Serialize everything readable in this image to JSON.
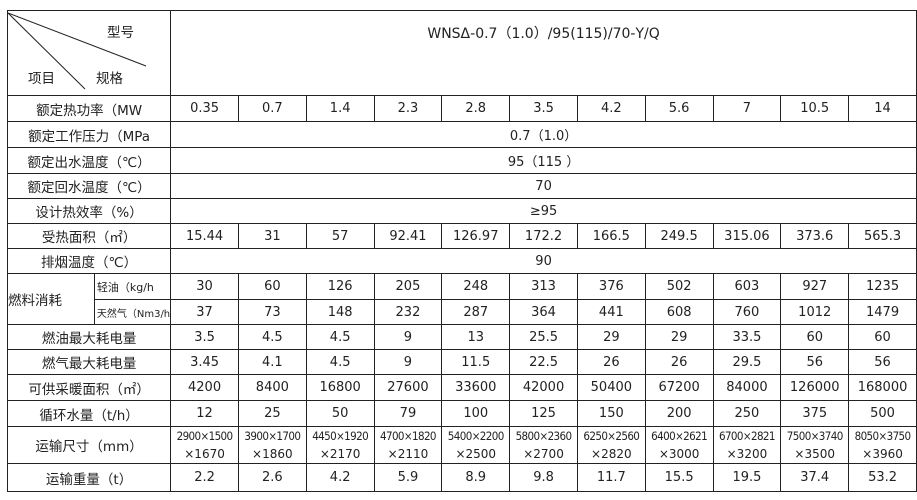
{
  "header": {
    "model_label": "型号",
    "item_label": "项目",
    "spec_label": "规格",
    "model": "WNSΔ-0.7（1.0）/95(115)/70-Y/Q"
  },
  "rows": [
    {
      "label": "额定热功率（MW",
      "values": [
        "0.35",
        "0.7",
        "1.4",
        "2.3",
        "2.8",
        "3.5",
        "4.2",
        "5.6",
        "7",
        "10.5",
        "14"
      ]
    },
    {
      "label": "额定工作压力（MPa",
      "merged": "0.7（1.0）"
    },
    {
      "label": "额定出水温度（℃）",
      "merged": "95（115 ）"
    },
    {
      "label": "额定回水温度（℃）",
      "merged": "70"
    },
    {
      "label": "设计热效率（%）",
      "merged": "≥95"
    },
    {
      "label": "受热面积（㎡）",
      "values": [
        "15.44",
        "31",
        "57",
        "92.41",
        "126.97",
        "172.2",
        "166.5",
        "249.5",
        "315.06",
        "373.6",
        "565.3"
      ]
    },
    {
      "label": "排烟温度（℃）",
      "merged": "90"
    }
  ],
  "fuel": {
    "label": "燃料消耗",
    "oil": {
      "label": "轻油（kg/h",
      "values": [
        "30",
        "60",
        "126",
        "205",
        "248",
        "313",
        "376",
        "502",
        "603",
        "927",
        "1235"
      ]
    },
    "gas": {
      "label": "天然气（Nm3/h",
      "values": [
        "37",
        "73",
        "148",
        "232",
        "287",
        "364",
        "441",
        "608",
        "760",
        "1012",
        "1479"
      ]
    }
  },
  "rows2": [
    {
      "label": "燃油最大耗电量",
      "values": [
        "3.5",
        "4.5",
        "4.5",
        "9",
        "13",
        "25.5",
        "29",
        "29",
        "33.5",
        "60",
        "60"
      ]
    },
    {
      "label": "燃气最大耗电量",
      "values": [
        "3.45",
        "4.1",
        "4.5",
        "9",
        "11.5",
        "22.5",
        "26",
        "26",
        "29.5",
        "56",
        "56"
      ]
    },
    {
      "label": "可供采暖面积（㎡）",
      "values": [
        "4200",
        "8400",
        "16800",
        "27600",
        "33600",
        "42000",
        "50400",
        "67200",
        "84000",
        "126000",
        "168000"
      ]
    },
    {
      "label": "循环水量（t/h）",
      "values": [
        "12",
        "25",
        "50",
        "79",
        "100",
        "125",
        "150",
        "200",
        "250",
        "375",
        "500"
      ]
    }
  ],
  "dims": {
    "label": "运输尺寸（mm）",
    "values": [
      [
        "2900×1500",
        "×1670"
      ],
      [
        "3900×1700",
        "×1860"
      ],
      [
        "4450×1920",
        "×2170"
      ],
      [
        "4700×1820",
        "×2110"
      ],
      [
        "5400×2200",
        "×2500"
      ],
      [
        "5800×2360",
        "×2700"
      ],
      [
        "6250×2560",
        "×2820"
      ],
      [
        "6400×2621",
        "×3000"
      ],
      [
        "6700×2821",
        "×3200"
      ],
      [
        "7500×3740",
        "×3500"
      ],
      [
        "8050×3750",
        "×3960"
      ]
    ]
  },
  "weight": {
    "label": "运输重量（t）",
    "values": [
      "2.2",
      "2.6",
      "4.2",
      "5.9",
      "8.9",
      "9.8",
      "11.7",
      "15.5",
      "19.5",
      "37.4",
      "53.2"
    ]
  }
}
